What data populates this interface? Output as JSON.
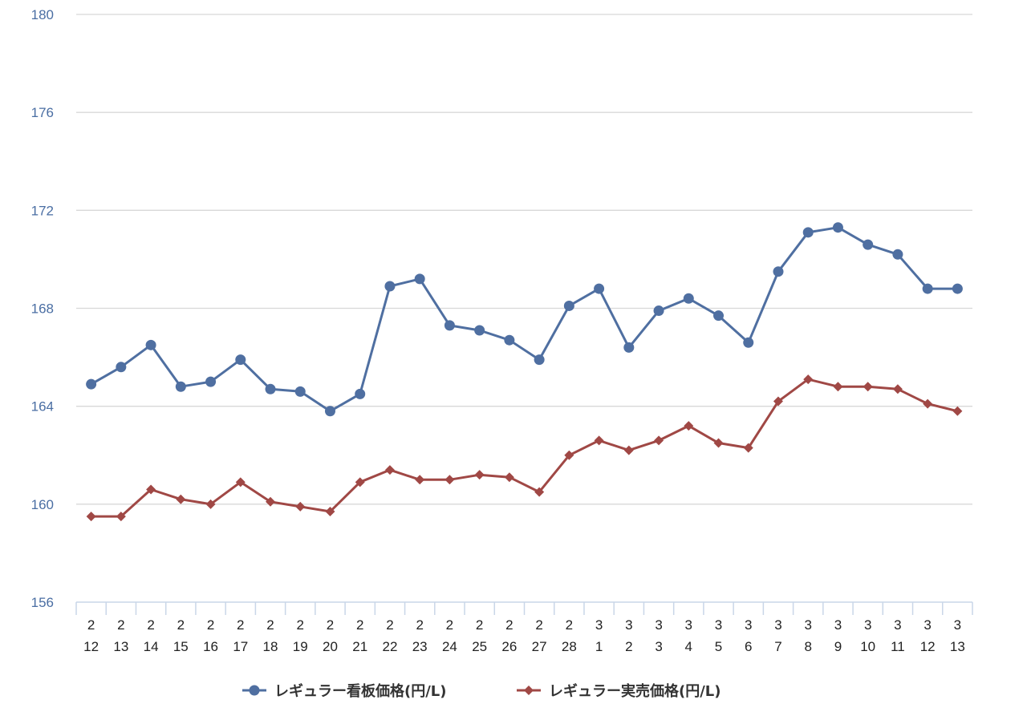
{
  "chart_data": {
    "type": "line",
    "categories": [
      [
        "2",
        "12"
      ],
      [
        "2",
        "13"
      ],
      [
        "2",
        "14"
      ],
      [
        "2",
        "15"
      ],
      [
        "2",
        "16"
      ],
      [
        "2",
        "17"
      ],
      [
        "2",
        "18"
      ],
      [
        "2",
        "19"
      ],
      [
        "2",
        "20"
      ],
      [
        "2",
        "21"
      ],
      [
        "2",
        "22"
      ],
      [
        "2",
        "23"
      ],
      [
        "2",
        "24"
      ],
      [
        "2",
        "25"
      ],
      [
        "2",
        "26"
      ],
      [
        "2",
        "27"
      ],
      [
        "2",
        "28"
      ],
      [
        "3",
        "1"
      ],
      [
        "3",
        "2"
      ],
      [
        "3",
        "3"
      ],
      [
        "3",
        "4"
      ],
      [
        "3",
        "5"
      ],
      [
        "3",
        "6"
      ],
      [
        "3",
        "7"
      ],
      [
        "3",
        "8"
      ],
      [
        "3",
        "9"
      ],
      [
        "3",
        "10"
      ],
      [
        "3",
        "11"
      ],
      [
        "3",
        "12"
      ],
      [
        "3",
        "13"
      ]
    ],
    "series": [
      {
        "name": "レギュラー看板価格(円/L)",
        "color": "#4f6fa1",
        "marker": "circle",
        "values": [
          164.9,
          165.6,
          166.5,
          164.8,
          165.0,
          165.9,
          164.7,
          164.6,
          163.8,
          164.5,
          168.9,
          169.2,
          167.3,
          167.1,
          166.7,
          165.9,
          168.1,
          168.8,
          166.4,
          167.9,
          168.4,
          167.7,
          166.6,
          169.5,
          171.1,
          171.3,
          170.6,
          170.2,
          168.8,
          168.8
        ]
      },
      {
        "name": "レギュラー実売価格(円/L)",
        "color": "#a04845",
        "marker": "diamond",
        "values": [
          159.5,
          159.5,
          160.6,
          160.2,
          160.0,
          160.9,
          160.1,
          159.9,
          159.7,
          160.9,
          161.4,
          161.0,
          161.0,
          161.2,
          161.1,
          160.5,
          162.0,
          162.6,
          162.2,
          162.6,
          163.2,
          162.5,
          162.3,
          164.2,
          165.1,
          164.8,
          164.8,
          164.7,
          164.1,
          163.8
        ]
      }
    ],
    "yticks": [
      "180",
      "176",
      "172",
      "168",
      "164",
      "160",
      "156"
    ],
    "ylim": [
      156,
      180
    ],
    "grid": true,
    "legend_position": "bottom-center",
    "title": "",
    "xlabel": "",
    "ylabel": ""
  }
}
